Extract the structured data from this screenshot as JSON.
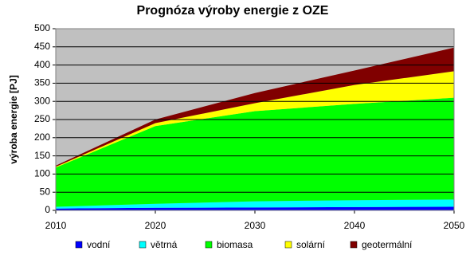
{
  "chart_data": {
    "type": "stacked_area",
    "title": "Prognóza výroby energie z OZE",
    "y_label": "výroba energie [PJ]",
    "x": [
      2010,
      2020,
      2030,
      2040,
      2050
    ],
    "xlim": [
      2010,
      2050
    ],
    "xticks": [
      2010,
      2020,
      2030,
      2040,
      2050
    ],
    "ylim": [
      0,
      500
    ],
    "yticks": [
      0,
      50,
      100,
      150,
      200,
      250,
      300,
      350,
      400,
      450,
      500
    ],
    "grid": true,
    "legend": "bottom",
    "series": [
      {
        "name": "vodní",
        "color": "#0000ff",
        "values": [
          5,
          7,
          8,
          9,
          10
        ]
      },
      {
        "name": "větrná",
        "color": "#00ffff",
        "values": [
          5,
          11,
          17,
          19,
          20
        ]
      },
      {
        "name": "biomasa",
        "color": "#00ff00",
        "values": [
          108,
          214,
          248,
          265,
          280
        ]
      },
      {
        "name": "solární",
        "color": "#ffff00",
        "values": [
          2,
          8,
          22,
          52,
          73
        ]
      },
      {
        "name": "geotermální",
        "color": "#800000",
        "values": [
          3,
          10,
          28,
          40,
          65
        ]
      }
    ]
  }
}
